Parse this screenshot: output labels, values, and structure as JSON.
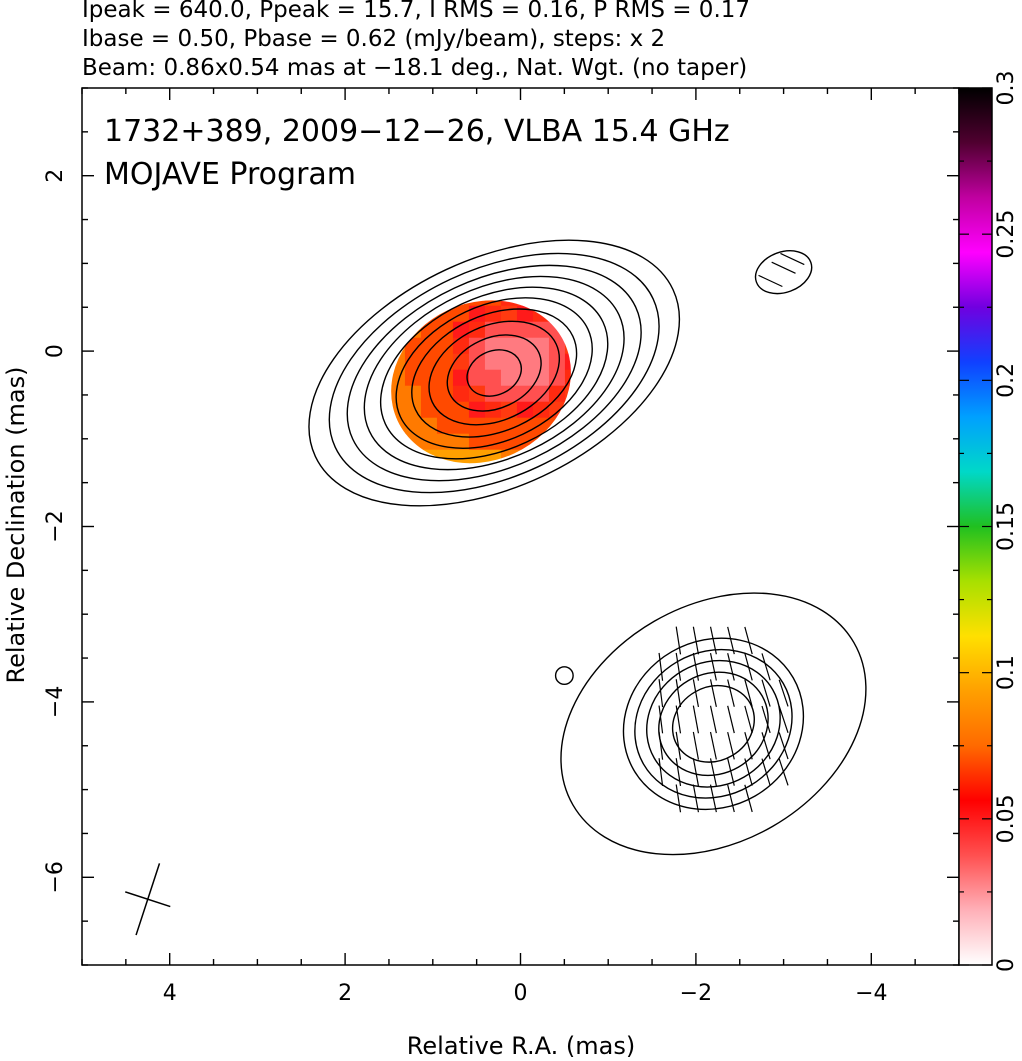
{
  "header": {
    "line1": "Ipeak = 640.0, Ppeak = 15.7, I RMS = 0.16, P RMS = 0.17",
    "line2": "Ibase = 0.50, Pbase = 0.62 (mJy/beam), steps: x 2",
    "line3": "Beam: 0.86x0.54 mas at −18.1 deg., Nat. Wgt. (no taper)"
  },
  "chart_data": {
    "type": "heatmap",
    "annotation_line1": "1732+389, 2009−12−26, VLBA 15.4 GHz",
    "annotation_line2": "MOJAVE Program",
    "xlabel": "Relative R.A. (mas)",
    "ylabel": "Relative Declination (mas)",
    "xlim": [
      5.0,
      -5.0
    ],
    "ylim": [
      -7.0,
      3.0
    ],
    "x_ticks": [
      4,
      2,
      0,
      -2,
      -4
    ],
    "x_tick_labels": [
      "4",
      "2",
      "0",
      "−2",
      "−4"
    ],
    "y_ticks": [
      2,
      0,
      -2,
      -4,
      -6
    ],
    "y_tick_labels": [
      "2",
      "0",
      "−2",
      "−4",
      "−6"
    ],
    "colorbar": {
      "range": [
        0,
        0.3
      ],
      "ticks": [
        0,
        0.05,
        0.1,
        0.15,
        0.2,
        0.25,
        0.3
      ],
      "tick_labels": [
        "0",
        "0.05",
        "0.1",
        "0.15",
        "0.2",
        "0.25",
        "0.3"
      ],
      "stops": [
        "#ffffff",
        "#ffb0b8",
        "#ff5050",
        "#ff0000",
        "#ff6a00",
        "#ffa000",
        "#ffe000",
        "#a8e000",
        "#20c020",
        "#00d8c8",
        "#00a0ff",
        "#1040ff",
        "#7000e0",
        "#ff00ff",
        "#c000a0",
        "#500030",
        "#000000"
      ]
    },
    "core": {
      "center": [
        0.3,
        -0.25
      ],
      "contours": [
        {
          "a": 2.25,
          "b": 1.3,
          "pa": 25
        },
        {
          "a": 2.0,
          "b": 1.18,
          "pa": 25
        },
        {
          "a": 1.78,
          "b": 1.07,
          "pa": 25
        },
        {
          "a": 1.57,
          "b": 0.97,
          "pa": 25
        },
        {
          "a": 1.37,
          "b": 0.87,
          "pa": 25
        },
        {
          "a": 1.18,
          "b": 0.77,
          "pa": 25
        },
        {
          "a": 0.99,
          "b": 0.66,
          "pa": 25
        },
        {
          "a": 0.78,
          "b": 0.54,
          "pa": 25
        },
        {
          "a": 0.56,
          "b": 0.4,
          "pa": 25
        },
        {
          "a": 0.32,
          "b": 0.25,
          "pa": 25
        }
      ],
      "fractional_polarization_region": {
        "center": [
          0.45,
          -0.35
        ],
        "a": 1.05,
        "b": 0.9,
        "pa": 25,
        "typical_value": 0.05
      }
    },
    "jet_component": {
      "center": [
        -2.2,
        -4.25
      ],
      "contours": [
        {
          "a": 1.85,
          "b": 1.35,
          "pa": 30
        },
        {
          "a": 1.05,
          "b": 0.95,
          "pa": 30
        },
        {
          "a": 0.92,
          "b": 0.82,
          "pa": 30
        },
        {
          "a": 0.78,
          "b": 0.7,
          "pa": 30
        },
        {
          "a": 0.64,
          "b": 0.57,
          "pa": 30
        },
        {
          "a": 0.48,
          "b": 0.42,
          "pa": 30
        }
      ]
    },
    "small_features": [
      {
        "x": -3.0,
        "y": 0.9,
        "a": 0.33,
        "b": 0.23,
        "pa": 20
      },
      {
        "x": -0.5,
        "y": -3.7,
        "a": 0.1,
        "b": 0.1,
        "pa": 0
      }
    ],
    "beam": {
      "x": 4.25,
      "y": -6.25,
      "major": 0.86,
      "minor": 0.54,
      "pa_deg": -18.1
    }
  }
}
